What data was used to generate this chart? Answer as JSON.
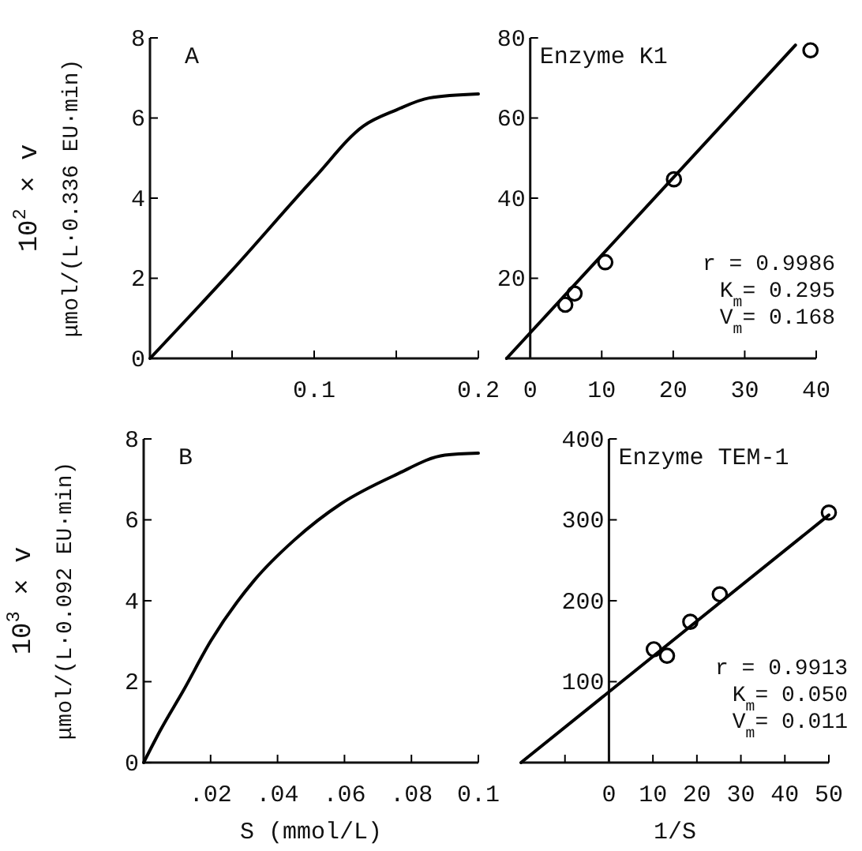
{
  "chart_data": [
    {
      "type": "line",
      "title": "A",
      "ylabel": "10$^{2}$ × v\nμmol/(L·0.336 EU·min)",
      "xlim": [
        0,
        0.2
      ],
      "ylim": [
        0,
        8
      ],
      "xticks": [
        {
          "value": 0,
          "label": null
        },
        {
          "value": 0.05,
          "label": null
        },
        0.1,
        {
          "value": 0.15,
          "label": null
        },
        0.2
      ],
      "yticks": [
        0,
        2,
        4,
        6,
        8
      ],
      "grid": false,
      "marker": "none",
      "series": [
        {
          "color": "#000000",
          "x": [
            0,
            0.05,
            0.1,
            0.13,
            0.15,
            0.17,
            0.2
          ],
          "values": [
            0,
            2.2,
            4.5,
            5.8,
            6.2,
            6.5,
            6.6
          ]
        }
      ]
    },
    {
      "type": "scatter",
      "title": "Enzyme K1",
      "annotations": [
        "r = 0.9986",
        "K$_{m}$= 0.295",
        "V$_{m}$= 0.168"
      ],
      "xlim": [
        -3.5,
        40
      ],
      "ylim": [
        0,
        80
      ],
      "xticks": [
        0,
        10,
        20,
        30,
        40
      ],
      "yticks": [
        20,
        40,
        60,
        80
      ],
      "grid": false,
      "marker": "circle",
      "series": [
        {
          "color": "#000000",
          "x": [
            4.9,
            6.2,
            10.5,
            20.1,
            39.2
          ],
          "values": [
            13.4,
            16.2,
            24,
            44.7,
            76.9
          ]
        },
        {
          "type": "line",
          "marker": "none",
          "color": "#000000",
          "x": [
            -3.3,
            37.1
          ],
          "values": [
            0,
            78.2
          ]
        }
      ]
    },
    {
      "type": "line",
      "title": "B",
      "ylabel": "10$^{3}$ × v\nμmol/(L·0.092 EU·min)",
      "xlabel": "S (mmol/L)",
      "xlim": [
        0,
        0.1
      ],
      "ylim": [
        0,
        8
      ],
      "xticks": [
        {
          "value": 0,
          "label": null
        },
        {
          "value": 0.02,
          "label": ".02"
        },
        {
          "value": 0.04,
          "label": ".04"
        },
        {
          "value": 0.06,
          "label": ".06"
        },
        {
          "value": 0.08,
          "label": ".08"
        },
        0.1
      ],
      "yticks": [
        0,
        2,
        4,
        6,
        8
      ],
      "grid": false,
      "marker": "none",
      "series": [
        {
          "color": "#000000",
          "x": [
            0,
            0.005,
            0.012,
            0.02,
            0.033,
            0.045,
            0.059,
            0.075,
            0.09,
            0.1
          ],
          "values": [
            0,
            0.8,
            1.8,
            3.0,
            4.5,
            5.5,
            6.4,
            7.1,
            7.6,
            7.65
          ]
        }
      ]
    },
    {
      "type": "scatter",
      "title": "Enzyme TEM-1",
      "xlabel": "1/S",
      "annotations": [
        "r = 0.9913",
        "K$_{m}$= 0.050",
        "V$_{m}$= 0.011"
      ],
      "xlim": [
        -20,
        50
      ],
      "ylim": [
        0,
        400
      ],
      "xticks": [
        {
          "value": -10,
          "label": null
        },
        0,
        10,
        20,
        30,
        40,
        50
      ],
      "yticks": [
        100,
        200,
        300,
        400
      ],
      "grid": false,
      "marker": "circle",
      "series": [
        {
          "color": "#000000",
          "x": [
            10.2,
            13.2,
            18.5,
            25.2,
            50
          ],
          "values": [
            140,
            132,
            174,
            208,
            309
          ]
        },
        {
          "type": "line",
          "marker": "none",
          "color": "#000000",
          "x": [
            -20,
            50
          ],
          "values": [
            0,
            306
          ]
        }
      ]
    }
  ]
}
